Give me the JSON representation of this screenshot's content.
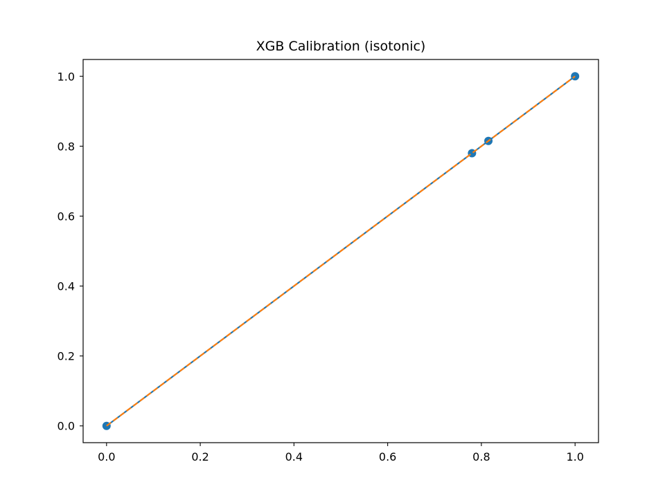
{
  "chart_data": {
    "type": "line",
    "title": "XGB Calibration (isotonic)",
    "xlabel": "",
    "ylabel": "",
    "xlim": [
      -0.05,
      1.05
    ],
    "ylim": [
      -0.048,
      1.048
    ],
    "xticks": [
      0.0,
      0.2,
      0.4,
      0.6,
      0.8,
      1.0
    ],
    "xtick_labels": [
      "0.0",
      "0.2",
      "0.4",
      "0.6",
      "0.8",
      "1.0"
    ],
    "yticks": [
      0.0,
      0.2,
      0.4,
      0.6,
      0.8,
      1.0
    ],
    "ytick_labels": [
      "0.0",
      "0.2",
      "0.4",
      "0.6",
      "0.8",
      "1.0"
    ],
    "grid": false,
    "legend": "none",
    "series": [
      {
        "style": "solid-with-markers",
        "color": "#1f77b4",
        "x": [
          0.0,
          0.78,
          0.815,
          1.0
        ],
        "y": [
          0.0,
          0.78,
          0.815,
          1.0
        ]
      },
      {
        "style": "dashed",
        "color": "#ff7f0e",
        "x": [
          0.0,
          1.0
        ],
        "y": [
          0.0,
          1.0
        ]
      }
    ]
  }
}
